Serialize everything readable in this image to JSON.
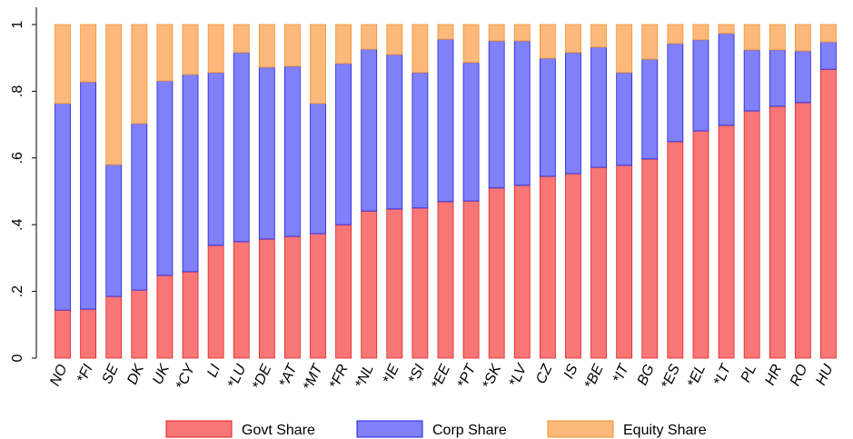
{
  "chart_data": {
    "type": "stacked-bar",
    "categories": [
      "NO",
      "*FI",
      "SE",
      "DK",
      "UK",
      "*CY",
      "LI",
      "*LU",
      "*DE",
      "*AT",
      "*MT",
      "*FR",
      "*NL",
      "*IE",
      "*SI",
      "*EE",
      "*PT",
      "*SK",
      "*LV",
      "CZ",
      "IS",
      "*BE",
      "*IT",
      "BG",
      "*ES",
      "*EL",
      "*LT",
      "PL",
      "HR",
      "RO",
      "HU"
    ],
    "series": [
      {
        "name": "Govt Share",
        "color": "#f87676",
        "values": [
          0.144,
          0.147,
          0.185,
          0.204,
          0.248,
          0.259,
          0.338,
          0.349,
          0.357,
          0.365,
          0.373,
          0.4,
          0.441,
          0.447,
          0.45,
          0.469,
          0.471,
          0.51,
          0.518,
          0.545,
          0.553,
          0.572,
          0.578,
          0.597,
          0.649,
          0.681,
          0.698,
          0.741,
          0.755,
          0.766,
          0.866
        ]
      },
      {
        "name": "Corp Share",
        "color": "#8080f8",
        "values": [
          0.619,
          0.681,
          0.395,
          0.499,
          0.583,
          0.591,
          0.518,
          0.567,
          0.515,
          0.51,
          0.39,
          0.483,
          0.485,
          0.463,
          0.406,
          0.487,
          0.415,
          0.441,
          0.433,
          0.354,
          0.363,
          0.36,
          0.278,
          0.299,
          0.294,
          0.273,
          0.275,
          0.183,
          0.169,
          0.155,
          0.082
        ]
      },
      {
        "name": "Equity Share",
        "color": "#fdb97b",
        "values": [
          0.237,
          0.172,
          0.42,
          0.297,
          0.169,
          0.15,
          0.144,
          0.084,
          0.128,
          0.125,
          0.237,
          0.117,
          0.074,
          0.09,
          0.144,
          0.044,
          0.114,
          0.049,
          0.049,
          0.101,
          0.084,
          0.068,
          0.144,
          0.104,
          0.057,
          0.046,
          0.027,
          0.076,
          0.076,
          0.079,
          0.052
        ]
      }
    ],
    "ylim": [
      0,
      1
    ],
    "yticks": [
      0,
      {
        "value": 0.2,
        "label": ".2"
      },
      {
        "value": 0.4,
        "label": ".4"
      },
      {
        "value": 0.6,
        "label": ".6"
      },
      {
        "value": 0.8,
        "label": ".8"
      },
      1
    ],
    "grid": false
  }
}
